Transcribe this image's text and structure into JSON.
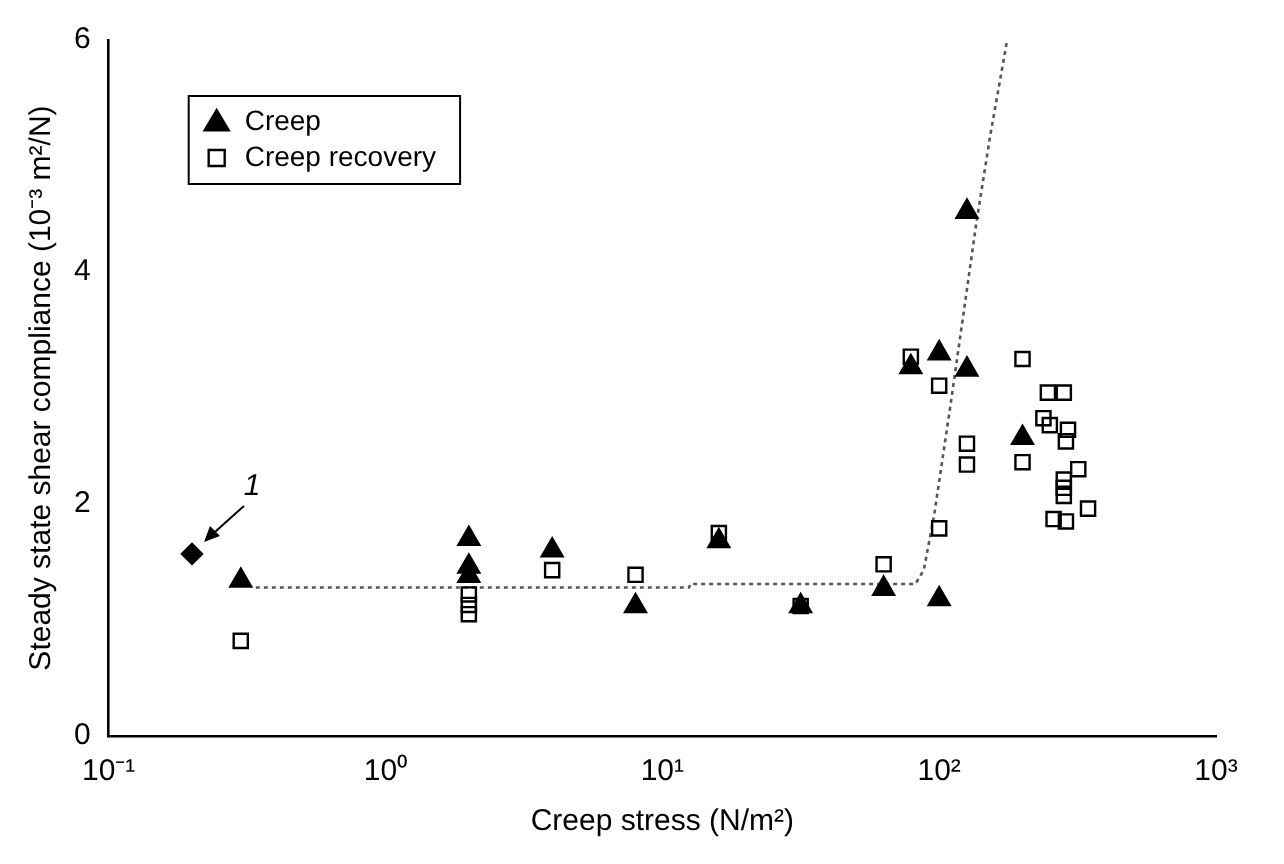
{
  "chart_data": {
    "type": "scatter",
    "xlabel": "Creep stress (N/m²)",
    "ylabel": "Steady state shear compliance (10⁻³ m²/N)",
    "log": "x",
    "xlim": [
      0.1,
      1000
    ],
    "xticks": [
      {
        "value": 0.1,
        "label": "10⁻¹"
      },
      {
        "value": 1,
        "label": "10⁰"
      },
      {
        "value": 10,
        "label": "10¹"
      },
      {
        "value": 100,
        "label": "10²"
      },
      {
        "value": 1000,
        "label": "10³"
      }
    ],
    "ylim": [
      0,
      6
    ],
    "yticks": [
      0,
      2,
      4,
      6
    ],
    "grid": false,
    "legend": "top left",
    "annotations": [
      {
        "text": "1",
        "x": 0.2,
        "y": 1.57
      }
    ],
    "series": [
      {
        "name": "Creep",
        "marker": "triangle",
        "color": "#000000",
        "x": [
          0.3,
          2,
          2,
          2,
          4,
          8,
          16,
          31.6,
          63,
          100,
          126,
          79,
          100,
          126,
          200
        ],
        "values": [
          1.34,
          1.7,
          1.46,
          1.38,
          1.6,
          1.12,
          1.68,
          1.12,
          1.27,
          1.18,
          4.52,
          3.18,
          3.3,
          3.16,
          2.57
        ]
      },
      {
        "name": "Creep recovery",
        "marker": "square",
        "color": "#000000",
        "x": [
          0.3,
          2,
          2,
          2,
          4,
          8,
          16,
          31.6,
          63,
          100,
          79,
          100,
          126,
          126,
          200,
          200,
          247,
          282,
          238,
          251,
          292,
          287,
          318,
          282,
          282,
          282,
          345,
          259,
          287
        ],
        "values": [
          0.82,
          1.22,
          1.13,
          1.05,
          1.43,
          1.39,
          1.75,
          1.12,
          1.48,
          1.79,
          3.27,
          3.02,
          2.52,
          2.34,
          3.25,
          2.36,
          2.96,
          2.96,
          2.74,
          2.68,
          2.64,
          2.54,
          2.3,
          2.21,
          2.14,
          2.07,
          1.96,
          1.87,
          1.85
        ]
      },
      {
        "marker": "diamond",
        "color": "#000000",
        "x": [
          0.2
        ],
        "values": [
          1.57
        ]
      },
      {
        "type": "line",
        "line_style": "dotted",
        "marker": "none",
        "color": "#555555",
        "x": [
          0.34,
          12.5,
          12.6,
          82,
          88,
          96,
          110,
          136,
          153,
          176
        ],
        "values": [
          1.28,
          1.28,
          1.31,
          1.31,
          1.43,
          1.91,
          2.86,
          4.41,
          5.18,
          6.0
        ]
      }
    ]
  }
}
